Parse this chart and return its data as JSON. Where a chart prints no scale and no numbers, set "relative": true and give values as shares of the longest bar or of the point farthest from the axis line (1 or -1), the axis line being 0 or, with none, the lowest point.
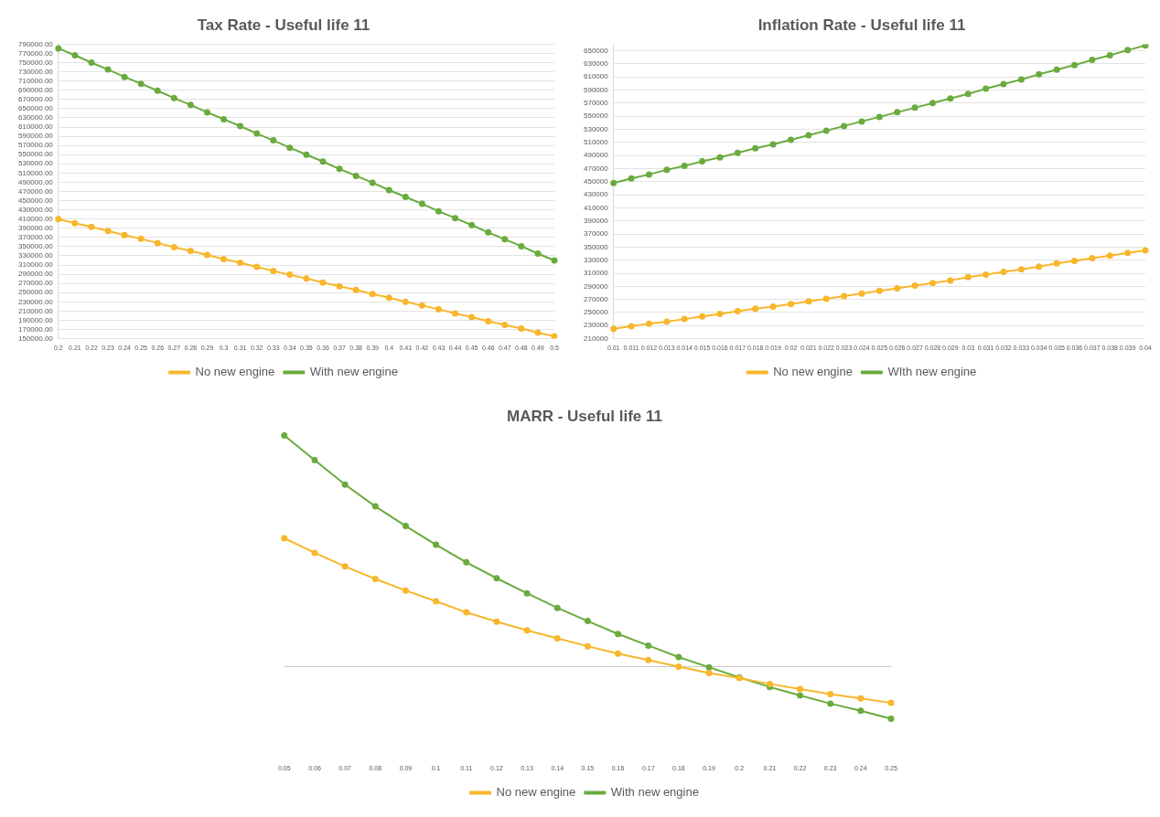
{
  "chart_data": [
    {
      "type": "line",
      "title": "Tax Rate - Useful life 11",
      "categories": [
        "0.2",
        "0.21",
        "0.22",
        "0.23",
        "0.24",
        "0.25",
        "0.26",
        "0.27",
        "0.28",
        "0.29",
        "0.3",
        "0.31",
        "0.32",
        "0.33",
        "0.34",
        "0.35",
        "0.36",
        "0.37",
        "0.38",
        "0.39",
        "0.4",
        "0.41",
        "0.42",
        "0.43",
        "0.44",
        "0.45",
        "0.46",
        "0.47",
        "0.48",
        "0.49",
        "0.5"
      ],
      "series": [
        {
          "name": "No new engine",
          "color": "#f8b62b",
          "values": [
            410000,
            401000,
            393000,
            384000,
            375000,
            367000,
            358000,
            349000,
            341000,
            332000,
            323000,
            315000,
            306000,
            297000,
            289000,
            281000,
            272000,
            264000,
            256000,
            247000,
            239000,
            230000,
            222000,
            214000,
            205000,
            197000,
            188000,
            180000,
            172000,
            163000,
            155000
          ]
        },
        {
          "name": "With new engine",
          "color": "#6aab3e",
          "values": [
            781000,
            766000,
            750000,
            735000,
            719000,
            704000,
            689000,
            673000,
            658000,
            642000,
            627000,
            612000,
            596000,
            581000,
            565000,
            550000,
            535000,
            519000,
            504000,
            489000,
            473000,
            458000,
            443000,
            427000,
            412000,
            397000,
            381000,
            366000,
            351000,
            335000,
            320000
          ]
        }
      ],
      "ylim": [
        150000,
        790000
      ],
      "yticks": [
        {
          "value": 150000,
          "label": "150000.00"
        },
        {
          "value": 170000,
          "label": "170000.00"
        },
        {
          "value": 190000,
          "label": "190000.00"
        },
        {
          "value": 210000,
          "label": "210000.00"
        },
        {
          "value": 230000,
          "label": "230000.00"
        },
        {
          "value": 250000,
          "label": "250000.00"
        },
        {
          "value": 270000,
          "label": "270000.00"
        },
        {
          "value": 290000,
          "label": "290000.00"
        },
        {
          "value": 310000,
          "label": "310000.00"
        },
        {
          "value": 330000,
          "label": "330000.00"
        },
        {
          "value": 350000,
          "label": "350000.00"
        },
        {
          "value": 370000,
          "label": "370000.00"
        },
        {
          "value": 390000,
          "label": "390000.00"
        },
        {
          "value": 410000,
          "label": "410000.00"
        },
        {
          "value": 430000,
          "label": "430000.00"
        },
        {
          "value": 450000,
          "label": "450000.00"
        },
        {
          "value": 470000,
          "label": "470000.00"
        },
        {
          "value": 490000,
          "label": "490000.00"
        },
        {
          "value": 510000,
          "label": "510000.00"
        },
        {
          "value": 530000,
          "label": "530000.00"
        },
        {
          "value": 550000,
          "label": "550000.00"
        },
        {
          "value": 570000,
          "label": "570000.00"
        },
        {
          "value": 590000,
          "label": "590000.00"
        },
        {
          "value": 610000,
          "label": "610000.00"
        },
        {
          "value": 630000,
          "label": "630000.00"
        },
        {
          "value": 650000,
          "label": "650000.00"
        },
        {
          "value": 670000,
          "label": "670000.00"
        },
        {
          "value": 690000,
          "label": "690000.00"
        },
        {
          "value": 710000,
          "label": "710000.00"
        },
        {
          "value": 730000,
          "label": "730000.00"
        },
        {
          "value": 750000,
          "label": "750000.00"
        },
        {
          "value": 770000,
          "label": "770000.00"
        },
        {
          "value": 790000,
          "label": "790000.00"
        }
      ],
      "grid": "y",
      "legend": "bottom",
      "marker": "circle"
    },
    {
      "type": "line",
      "title": "Inflation Rate - Useful life 11",
      "categories": [
        "0.01",
        "0.011",
        "0.012",
        "0.013",
        "0.014",
        "0.015",
        "0.016",
        "0.017",
        "0.018",
        "0.019",
        "0.02",
        "0.021",
        "0.022",
        "0.023",
        "0.024",
        "0.025",
        "0.026",
        "0.027",
        "0.028",
        "0.029",
        "0.03",
        "0.031",
        "0.032",
        "0.033",
        "0.034",
        "0.035",
        "0.036",
        "0.037",
        "0.038",
        "0.039",
        "0.04"
      ],
      "series": [
        {
          "name": "No new engine",
          "color": "#f8b62b",
          "values": [
            225000,
            229000,
            233000,
            236000,
            240000,
            244000,
            248000,
            252000,
            256000,
            259000,
            263000,
            267000,
            271000,
            275000,
            279000,
            283000,
            287000,
            291000,
            295000,
            299000,
            304000,
            308000,
            312000,
            316000,
            320000,
            325000,
            329000,
            333000,
            337000,
            341000,
            345000
          ]
        },
        {
          "name": "WIth new engine",
          "color": "#6aab3e",
          "values": [
            448000,
            455000,
            461000,
            468000,
            474000,
            481000,
            487000,
            494000,
            501000,
            507000,
            514000,
            521000,
            528000,
            535000,
            542000,
            549000,
            556000,
            563000,
            570000,
            577000,
            584000,
            592000,
            599000,
            606000,
            614000,
            621000,
            628000,
            636000,
            643000,
            651000,
            658000
          ]
        }
      ],
      "ylim": [
        210000,
        660000
      ],
      "yticks": [
        210000,
        230000,
        250000,
        270000,
        290000,
        310000,
        330000,
        350000,
        370000,
        390000,
        410000,
        430000,
        450000,
        470000,
        490000,
        510000,
        530000,
        550000,
        570000,
        590000,
        610000,
        630000,
        650000
      ],
      "grid": "y",
      "legend": "bottom",
      "marker": "circle"
    },
    {
      "type": "line",
      "title": "MARR - Useful life 11",
      "categories": [
        "0.05",
        "0.06",
        "0.07",
        "0.08",
        "0.09",
        "0.1",
        "0.11",
        "0.12",
        "0.13",
        "0.14",
        "0.15",
        "0.16",
        "0.17",
        "0.18",
        "0.19",
        "0.2",
        "0.21",
        "0.22",
        "0.23",
        "0.24",
        "0.25"
      ],
      "relative": true,
      "series": [
        {
          "name": "No new engine",
          "color": "#f8b62b",
          "values": [
            0.555,
            0.492,
            0.433,
            0.379,
            0.329,
            0.282,
            0.235,
            0.194,
            0.157,
            0.122,
            0.088,
            0.056,
            0.028,
            0,
            -0.028,
            -0.05,
            -0.075,
            -0.097,
            -0.119,
            -0.138,
            -0.157
          ]
        },
        {
          "name": "With new engine",
          "color": "#6aab3e",
          "values": [
            1,
            0.893,
            0.787,
            0.693,
            0.608,
            0.527,
            0.451,
            0.382,
            0.317,
            0.254,
            0.197,
            0.141,
            0.091,
            0.041,
            -0.003,
            -0.047,
            -0.088,
            -0.125,
            -0.16,
            -0.191,
            -0.226
          ]
        }
      ],
      "legend": "bottom",
      "marker": "circle"
    }
  ]
}
